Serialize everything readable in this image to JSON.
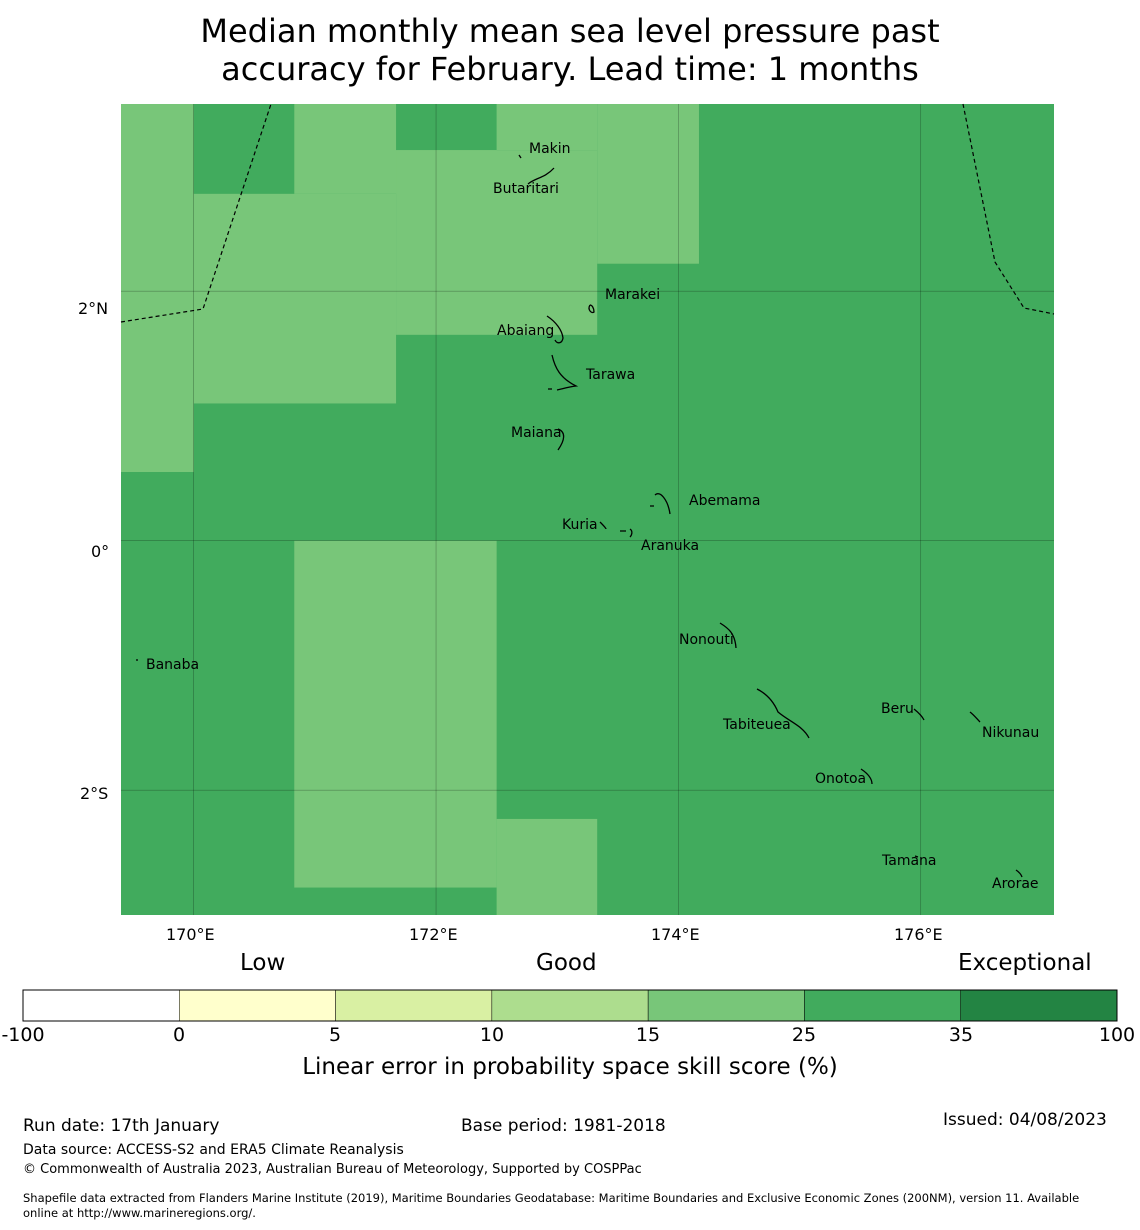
{
  "title_line1": "Median monthly mean sea level pressure past",
  "title_line2": "accuracy for February. Lead time: 1 months",
  "map": {
    "lon_range": [
      169.4,
      177.1
    ],
    "lat_range": [
      -3.0,
      3.5
    ],
    "grid_lons": [
      170,
      172,
      174,
      176
    ],
    "grid_lats": [
      -2,
      0,
      2
    ],
    "lon_ticks": [
      "170°E",
      "172°E",
      "174°E",
      "176°E"
    ],
    "lat_ticks": [
      "2°N",
      "0°",
      "2°S"
    ],
    "cell_categories_lon_lat": [
      {
        "lon": [
          169.4,
          170.0
        ],
        "lat": [
          0.55,
          3.5
        ],
        "class": "15-25"
      },
      {
        "lon": [
          169.4,
          170.0
        ],
        "lat": [
          -3.0,
          0.55
        ],
        "class": "25-35"
      },
      {
        "lon": [
          170.0,
          170.83
        ],
        "lat": [
          2.78,
          3.5
        ],
        "class": "25-35"
      },
      {
        "lon": [
          170.0,
          171.67
        ],
        "lat": [
          1.1,
          2.78
        ],
        "class": "15-25"
      },
      {
        "lon": [
          170.83,
          172.5
        ],
        "lat": [
          2.78,
          3.5
        ],
        "class": "15-25"
      },
      {
        "lon": [
          171.67,
          172.5
        ],
        "lat": [
          3.13,
          3.5
        ],
        "class": "25-35"
      },
      {
        "lon": [
          171.67,
          173.33
        ],
        "lat": [
          1.65,
          3.13
        ],
        "class": "15-25"
      },
      {
        "lon": [
          172.5,
          173.33
        ],
        "lat": [
          3.13,
          3.5
        ],
        "class": "15-25"
      },
      {
        "lon": [
          173.33,
          174.17
        ],
        "lat": [
          2.22,
          3.5
        ],
        "class": "15-25"
      },
      {
        "lon": [
          170.83,
          172.5
        ],
        "lat": [
          -2.78,
          0.0
        ],
        "class": "15-25"
      },
      {
        "lon": [
          172.5,
          173.33
        ],
        "lat": [
          -3.0,
          -2.23
        ],
        "class": "15-25"
      }
    ],
    "background_class": "25-35",
    "places": [
      {
        "name": "Makin",
        "lon": 173.0,
        "lat": 3.33
      },
      {
        "name": "Butaritari",
        "lon": 172.78,
        "lat": 3.0
      },
      {
        "name": "Marakei",
        "lon": 173.25,
        "lat": 1.98
      },
      {
        "name": "Abaiang",
        "lon": 172.97,
        "lat": 1.85
      },
      {
        "name": "Tarawa",
        "lon": 173.08,
        "lat": 1.43
      },
      {
        "name": "Maiana",
        "lon": 173.0,
        "lat": 0.93
      },
      {
        "name": "Abemama",
        "lon": 173.87,
        "lat": 0.42
      },
      {
        "name": "Kuria",
        "lon": 173.42,
        "lat": 0.23
      },
      {
        "name": "Aranuka",
        "lon": 173.6,
        "lat": 0.15
      },
      {
        "name": "Banaba",
        "lon": 169.53,
        "lat": -0.87
      },
      {
        "name": "Nonouti",
        "lon": 174.4,
        "lat": -0.63
      },
      {
        "name": "Tabiteuea",
        "lon": 174.8,
        "lat": -1.35
      },
      {
        "name": "Beru",
        "lon": 175.98,
        "lat": -1.35
      },
      {
        "name": "Nikunau",
        "lon": 176.45,
        "lat": -1.37
      },
      {
        "name": "Onotoa",
        "lon": 175.57,
        "lat": -1.83
      },
      {
        "name": "Tamana",
        "lon": 175.97,
        "lat": -2.5
      },
      {
        "name": "Arorae",
        "lon": 176.82,
        "lat": -2.65
      }
    ]
  },
  "categories": {
    "low": "Low",
    "good": "Good",
    "exceptional": "Exceptional"
  },
  "colorbar": {
    "bins": [
      {
        "from": "-100",
        "to": "0",
        "color": "#ffffff"
      },
      {
        "from": "0",
        "to": "5",
        "color": "#ffffcc"
      },
      {
        "from": "5",
        "to": "10",
        "color": "#d9f0a3"
      },
      {
        "from": "10",
        "to": "15",
        "color": "#addd8e"
      },
      {
        "from": "15",
        "to": "25",
        "color": "#78c679"
      },
      {
        "from": "25",
        "to": "35",
        "color": "#41ab5d"
      },
      {
        "from": "35",
        "to": "100",
        "color": "#238443"
      }
    ],
    "ticks": [
      "-100",
      "0",
      "5",
      "10",
      "15",
      "25",
      "35",
      "100"
    ],
    "label": "Linear error in probability space skill score (%)"
  },
  "footer": {
    "run_date": "Run date: 17th January",
    "base_period": "Base period: 1981-2018",
    "issued": "Issued: 04/08/2023",
    "data_source": "Data source: ACCESS-S2 and ERA5 Climate Reanalysis",
    "copyright": "© Commonwealth of Australia 2023, Australian Bureau of Meteorology, Supported by COSPPac",
    "shapefile_line1": "Shapefile data extracted from Flanders Marine Institute (2019), Maritime Boundaries Geodatabase: Maritime Boundaries and Exclusive Economic Zones (200NM), version 11. Available",
    "shapefile_line2": "online at http://www.marineregions.org/."
  }
}
